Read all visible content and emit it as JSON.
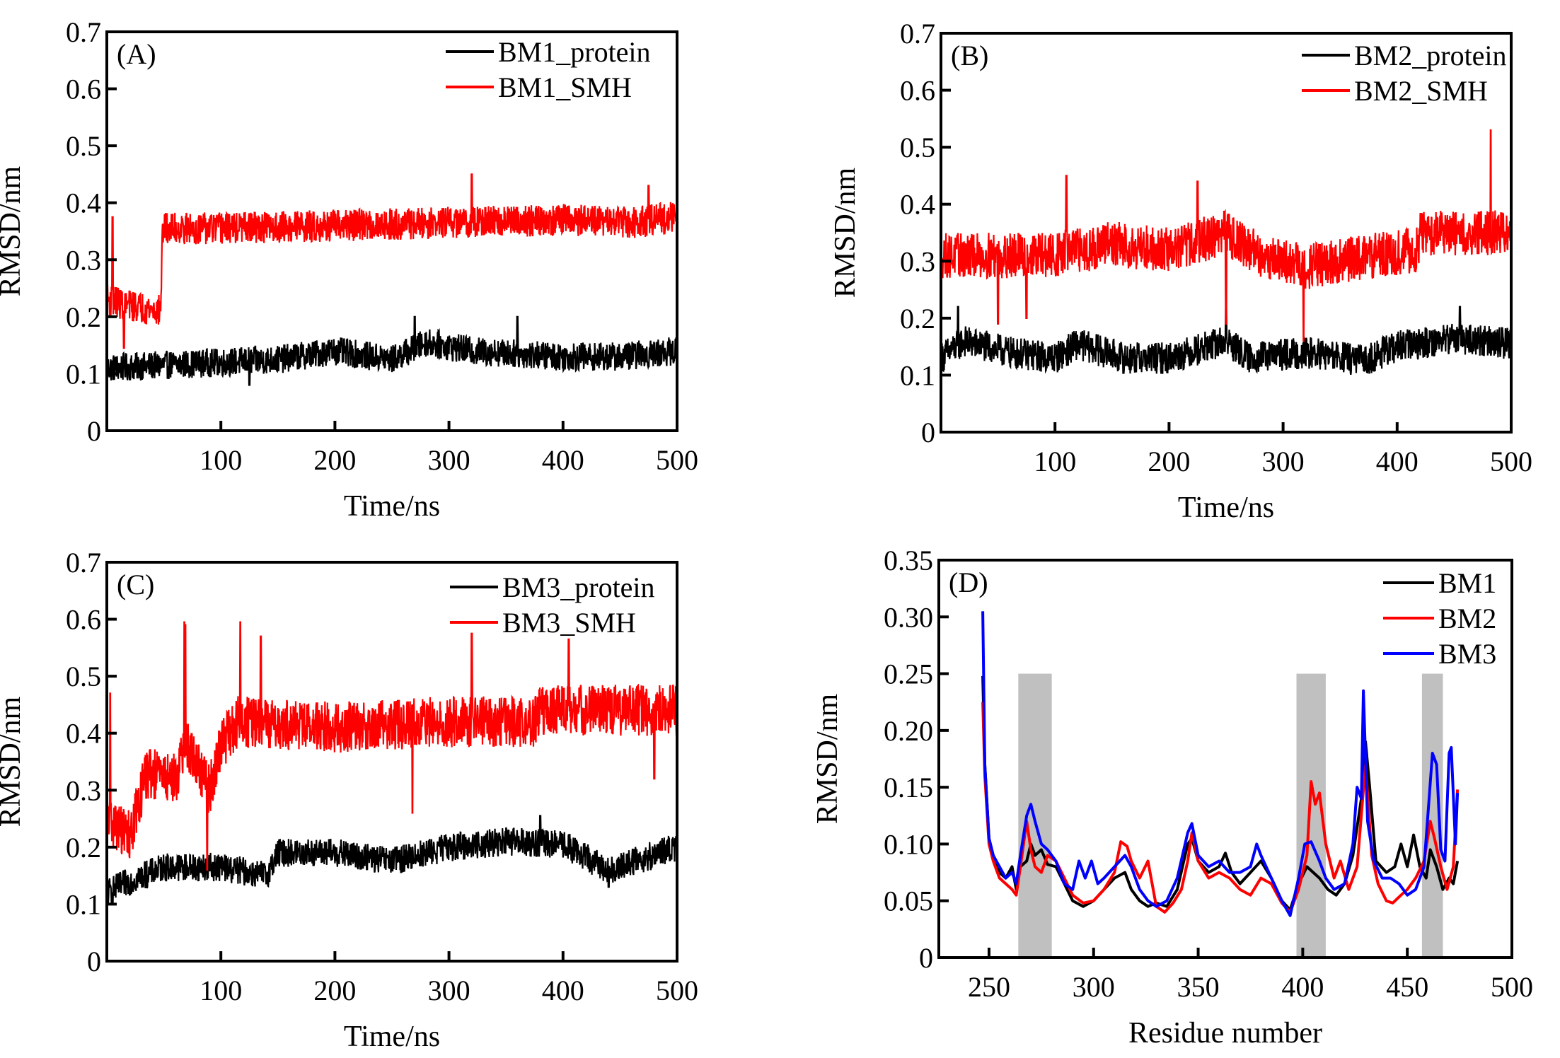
{
  "figure": {
    "panels": [
      "A",
      "B",
      "C",
      "D"
    ]
  },
  "chart_data": [
    {
      "id": "A",
      "type": "line",
      "panel_label": "(A)",
      "title": "",
      "xlabel": "Time/ns",
      "ylabel": "RMSD/nm",
      "xlim": [
        0,
        500
      ],
      "ylim": [
        0,
        0.7
      ],
      "xticks": [
        100,
        200,
        300,
        400,
        500
      ],
      "xtick_labels": [
        "100",
        "200",
        "300",
        "400",
        "500"
      ],
      "yticks": [
        0,
        0.1,
        0.2,
        0.3,
        0.4,
        0.5,
        0.6,
        0.7
      ],
      "ytick_labels": [
        "0",
        "0.1",
        "0.2",
        "0.3",
        "0.4",
        "0.5",
        "0.6",
        "0.7"
      ],
      "legend_position": "top-right",
      "grid": false,
      "series": [
        {
          "name": "BM1_protein",
          "color": "#000000",
          "profile": [
            [
              0,
              0.11
            ],
            [
              50,
              0.115
            ],
            [
              100,
              0.12
            ],
            [
              150,
              0.125
            ],
            [
              200,
              0.14
            ],
            [
              250,
              0.125
            ],
            [
              280,
              0.155
            ],
            [
              320,
              0.14
            ],
            [
              360,
              0.135
            ],
            [
              400,
              0.13
            ],
            [
              450,
              0.13
            ],
            [
              500,
              0.14
            ]
          ],
          "noise": 0.025,
          "spikes": [
            [
              270,
              0.2
            ],
            [
              360,
              0.2
            ],
            [
              500,
              0.2
            ],
            [
              125,
              0.08
            ]
          ]
        },
        {
          "name": "BM1_SMH",
          "color": "#ff0000",
          "profile": [
            [
              0,
              0.23
            ],
            [
              20,
              0.22
            ],
            [
              47,
              0.21
            ],
            [
              49,
              0.355
            ],
            [
              100,
              0.355
            ],
            [
              200,
              0.36
            ],
            [
              300,
              0.365
            ],
            [
              400,
              0.37
            ],
            [
              460,
              0.365
            ],
            [
              500,
              0.375
            ]
          ],
          "noise": 0.028,
          "spikes": [
            [
              5,
              0.375
            ],
            [
              15,
              0.145
            ],
            [
              320,
              0.45
            ],
            [
              475,
              0.43
            ]
          ]
        }
      ]
    },
    {
      "id": "B",
      "type": "line",
      "panel_label": "(B)",
      "title": "",
      "xlabel": "Time/ns",
      "ylabel": "RMSD/nm",
      "xlim": [
        0,
        500
      ],
      "ylim": [
        0,
        0.7
      ],
      "xticks": [
        100,
        200,
        300,
        400,
        500
      ],
      "xtick_labels": [
        "100",
        "200",
        "300",
        "400",
        "500"
      ],
      "yticks": [
        0,
        0.1,
        0.2,
        0.3,
        0.4,
        0.5,
        0.6,
        0.7
      ],
      "ytick_labels": [
        "0",
        "0.1",
        "0.2",
        "0.3",
        "0.4",
        "0.5",
        "0.6",
        "0.7"
      ],
      "legend_position": "top-right",
      "grid": false,
      "series": [
        {
          "name": "BM2_protein",
          "color": "#000000",
          "profile": [
            [
              0,
              0.13
            ],
            [
              20,
              0.16
            ],
            [
              60,
              0.14
            ],
            [
              100,
              0.13
            ],
            [
              120,
              0.155
            ],
            [
              160,
              0.13
            ],
            [
              200,
              0.13
            ],
            [
              250,
              0.16
            ],
            [
              270,
              0.13
            ],
            [
              320,
              0.14
            ],
            [
              370,
              0.125
            ],
            [
              400,
              0.15
            ],
            [
              450,
              0.165
            ],
            [
              500,
              0.155
            ]
          ],
          "noise": 0.028,
          "spikes": [
            [
              15,
              0.22
            ],
            [
              250,
              0.215
            ],
            [
              455,
              0.22
            ]
          ]
        },
        {
          "name": "BM2_SMH",
          "color": "#ff0000",
          "profile": [
            [
              0,
              0.31
            ],
            [
              50,
              0.31
            ],
            [
              100,
              0.31
            ],
            [
              150,
              0.33
            ],
            [
              200,
              0.32
            ],
            [
              250,
              0.35
            ],
            [
              280,
              0.31
            ],
            [
              320,
              0.29
            ],
            [
              380,
              0.31
            ],
            [
              418,
              0.32
            ],
            [
              420,
              0.35
            ],
            [
              500,
              0.35
            ]
          ],
          "noise": 0.04,
          "spikes": [
            [
              50,
              0.19
            ],
            [
              75,
              0.2
            ],
            [
              110,
              0.45
            ],
            [
              225,
              0.44
            ],
            [
              250,
              0.19
            ],
            [
              318,
              0.16
            ],
            [
              482,
              0.53
            ]
          ]
        }
      ]
    },
    {
      "id": "C",
      "type": "line",
      "panel_label": "(C)",
      "title": "",
      "xlabel": "Time/ns",
      "ylabel": "RMSD/nm",
      "xlim": [
        0,
        500
      ],
      "ylim": [
        0,
        0.7
      ],
      "xticks": [
        100,
        200,
        300,
        400,
        500
      ],
      "xtick_labels": [
        "100",
        "200",
        "300",
        "400",
        "500"
      ],
      "yticks": [
        0,
        0.1,
        0.2,
        0.3,
        0.4,
        0.5,
        0.6,
        0.7
      ],
      "ytick_labels": [
        "0",
        "0.1",
        "0.2",
        "0.3",
        "0.4",
        "0.5",
        "0.6",
        "0.7"
      ],
      "legend_position": "top-right",
      "grid": false,
      "series": [
        {
          "name": "BM3_protein",
          "color": "#000000",
          "profile": [
            [
              0,
              0.12
            ],
            [
              20,
              0.14
            ],
            [
              50,
              0.165
            ],
            [
              100,
              0.165
            ],
            [
              140,
              0.15
            ],
            [
              150,
              0.19
            ],
            [
              200,
              0.19
            ],
            [
              250,
              0.175
            ],
            [
              300,
              0.2
            ],
            [
              350,
              0.21
            ],
            [
              400,
              0.205
            ],
            [
              440,
              0.16
            ],
            [
              470,
              0.18
            ],
            [
              500,
              0.2
            ]
          ],
          "noise": 0.025,
          "spikes": [
            [
              380,
              0.255
            ],
            [
              440,
              0.13
            ]
          ]
        },
        {
          "name": "BM3_SMH",
          "color": "#ff0000",
          "profile": [
            [
              0,
              0.25
            ],
            [
              20,
              0.22
            ],
            [
              35,
              0.33
            ],
            [
              60,
              0.32
            ],
            [
              70,
              0.38
            ],
            [
              90,
              0.3
            ],
            [
              100,
              0.38
            ],
            [
              115,
              0.42
            ],
            [
              200,
              0.41
            ],
            [
              300,
              0.42
            ],
            [
              375,
              0.42
            ],
            [
              380,
              0.44
            ],
            [
              500,
              0.44
            ]
          ],
          "noise": 0.045,
          "spikes": [
            [
              3,
              0.47
            ],
            [
              68,
              0.595
            ],
            [
              69,
              0.59
            ],
            [
              88,
              0.16
            ],
            [
              117,
              0.595
            ],
            [
              135,
              0.57
            ],
            [
              268,
              0.26
            ],
            [
              320,
              0.575
            ],
            [
              405,
              0.565
            ],
            [
              480,
              0.32
            ]
          ]
        }
      ]
    },
    {
      "id": "D",
      "type": "line",
      "panel_label": "(D)",
      "title": "",
      "xlabel": "Residue number",
      "ylabel": "RMSD/nm",
      "xlim": [
        226,
        500
      ],
      "ylim": [
        0,
        0.35
      ],
      "xticks": [
        250,
        300,
        350,
        400,
        450,
        500
      ],
      "xtick_labels": [
        "250",
        "300",
        "350",
        "400",
        "450",
        "500"
      ],
      "yticks": [
        0,
        0.05,
        0.1,
        0.15,
        0.2,
        0.25,
        0.3,
        0.35
      ],
      "ytick_labels": [
        "0",
        "0.05",
        "0.10",
        "0.15",
        "0.20",
        "0.25",
        "0.30",
        "0.35"
      ],
      "legend_position": "top-right",
      "grid": false,
      "shaded_regions": [
        {
          "x": [
            264,
            280
          ],
          "y_top": 0.25,
          "color": "#c0c0c0"
        },
        {
          "x": [
            397,
            411
          ],
          "y_top": 0.25,
          "color": "#c0c0c0"
        },
        {
          "x": [
            457,
            467
          ],
          "y_top": 0.25,
          "color": "#c0c0c0"
        }
      ],
      "series": [
        {
          "name": "BM1",
          "color": "#000000",
          "x": [
            247,
            248,
            250,
            252,
            255,
            258,
            261,
            263,
            265,
            268,
            270,
            272,
            275,
            278,
            282,
            286,
            290,
            295,
            300,
            305,
            310,
            315,
            318,
            322,
            326,
            330,
            335,
            340,
            345,
            347,
            350,
            355,
            360,
            363,
            366,
            370,
            375,
            380,
            385,
            390,
            394,
            398,
            402,
            405,
            408,
            412,
            416,
            420,
            424,
            428,
            430,
            432,
            435,
            440,
            444,
            447,
            450,
            453,
            456,
            459,
            461,
            464,
            467,
            470,
            472,
            474
          ],
          "y": [
            0.248,
            0.17,
            0.105,
            0.09,
            0.075,
            0.07,
            0.08,
            0.06,
            0.08,
            0.085,
            0.1,
            0.09,
            0.095,
            0.082,
            0.08,
            0.065,
            0.05,
            0.045,
            0.05,
            0.06,
            0.07,
            0.075,
            0.06,
            0.05,
            0.045,
            0.048,
            0.045,
            0.06,
            0.1,
            0.105,
            0.085,
            0.075,
            0.08,
            0.092,
            0.075,
            0.065,
            0.075,
            0.085,
            0.07,
            0.05,
            0.042,
            0.065,
            0.08,
            0.075,
            0.07,
            0.06,
            0.055,
            0.065,
            0.09,
            0.14,
            0.19,
            0.15,
            0.085,
            0.075,
            0.08,
            0.1,
            0.08,
            0.108,
            0.08,
            0.07,
            0.095,
            0.08,
            0.06,
            0.07,
            0.065,
            0.085
          ]
        },
        {
          "name": "BM2",
          "color": "#ff0000",
          "x": [
            247,
            248,
            250,
            252,
            255,
            258,
            261,
            263,
            265,
            268,
            270,
            272,
            275,
            278,
            282,
            286,
            290,
            295,
            300,
            305,
            310,
            313,
            316,
            318,
            322,
            326,
            330,
            334,
            338,
            342,
            345,
            347,
            350,
            355,
            360,
            365,
            370,
            375,
            380,
            385,
            390,
            394,
            398,
            402,
            404,
            406,
            408,
            411,
            415,
            418,
            422,
            426,
            430,
            433,
            436,
            440,
            443,
            447,
            450,
            454,
            458,
            461,
            463,
            466,
            469,
            472,
            474
          ],
          "y": [
            0.225,
            0.16,
            0.1,
            0.085,
            0.07,
            0.065,
            0.06,
            0.055,
            0.08,
            0.12,
            0.095,
            0.08,
            0.075,
            0.09,
            0.085,
            0.07,
            0.055,
            0.048,
            0.05,
            0.06,
            0.075,
            0.102,
            0.098,
            0.085,
            0.07,
            0.085,
            0.045,
            0.04,
            0.048,
            0.06,
            0.085,
            0.11,
            0.085,
            0.07,
            0.075,
            0.07,
            0.06,
            0.055,
            0.07,
            0.065,
            0.048,
            0.04,
            0.06,
            0.09,
            0.155,
            0.135,
            0.145,
            0.1,
            0.07,
            0.085,
            0.06,
            0.08,
            0.17,
            0.09,
            0.065,
            0.05,
            0.048,
            0.055,
            0.06,
            0.07,
            0.085,
            0.12,
            0.105,
            0.08,
            0.06,
            0.08,
            0.148
          ]
        },
        {
          "name": "BM3",
          "color": "#0000ff",
          "x": [
            247,
            248,
            250,
            252,
            255,
            258,
            261,
            263,
            265,
            268,
            270,
            272,
            275,
            278,
            282,
            286,
            290,
            293,
            296,
            299,
            302,
            305,
            310,
            315,
            318,
            322,
            326,
            330,
            335,
            340,
            345,
            347,
            350,
            355,
            360,
            365,
            370,
            375,
            378,
            380,
            385,
            390,
            394,
            398,
            401,
            404,
            408,
            411,
            415,
            420,
            424,
            426,
            428,
            429,
            431,
            434,
            438,
            442,
            446,
            450,
            454,
            458,
            460,
            462,
            464,
            466,
            468,
            470,
            471,
            473,
            474
          ],
          "y": [
            0.305,
            0.17,
            0.105,
            0.09,
            0.08,
            0.07,
            0.075,
            0.065,
            0.09,
            0.125,
            0.135,
            0.12,
            0.1,
            0.095,
            0.085,
            0.065,
            0.06,
            0.085,
            0.07,
            0.085,
            0.065,
            0.07,
            0.08,
            0.09,
            0.08,
            0.06,
            0.05,
            0.045,
            0.05,
            0.07,
            0.11,
            0.118,
            0.09,
            0.08,
            0.085,
            0.075,
            0.075,
            0.08,
            0.1,
            0.09,
            0.07,
            0.05,
            0.037,
            0.07,
            0.1,
            0.102,
            0.085,
            0.07,
            0.06,
            0.065,
            0.1,
            0.15,
            0.14,
            0.235,
            0.12,
            0.085,
            0.07,
            0.07,
            0.065,
            0.055,
            0.06,
            0.08,
            0.13,
            0.18,
            0.17,
            0.095,
            0.085,
            0.18,
            0.185,
            0.1,
            0.145
          ]
        }
      ]
    }
  ]
}
